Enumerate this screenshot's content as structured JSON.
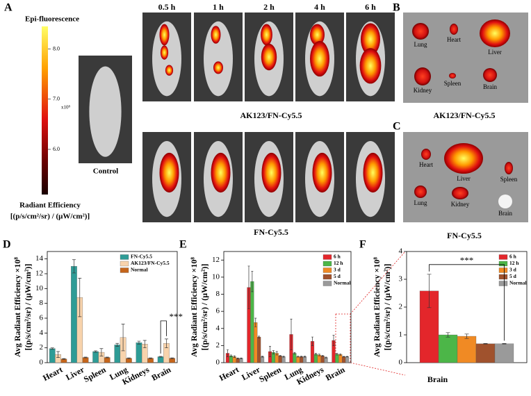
{
  "figure": {
    "panels": [
      "A",
      "B",
      "C",
      "D",
      "E",
      "F"
    ],
    "colorbar": {
      "title": "Epi-fluorescence",
      "lim": [
        5.1,
        8.45
      ],
      "ticks": [
        {
          "value": 8,
          "label": "8.0"
        },
        {
          "value": 7,
          "label": "7.0"
        },
        {
          "value": 6,
          "label": "6.0"
        }
      ],
      "multiplier": "x10⁸",
      "label": [
        "Radiant Efficiency",
        "[(p/s/cm²/sr) / (μW/cm²)]"
      ]
    },
    "time_labels": [
      "0.5 h",
      "1 h",
      "2 h",
      "4 h",
      "6 h"
    ],
    "control_label": "Control",
    "row_label_top": "AK123/FN-Cy5.5",
    "row_label_bottom": "FN-Cy5.5",
    "caption_b": "AK123/FN-Cy5.5",
    "caption_c": "FN-Cy5.5",
    "organs_b": [
      "Lung",
      "Heart",
      "Liver",
      "Kidney",
      "Spleen",
      "Brain"
    ],
    "organs_c": [
      "Heart",
      "Liver",
      "Spleen",
      "Lung",
      "Kidney",
      "Brain"
    ]
  },
  "chart_data": [
    {
      "type": "bar",
      "ylabel": [
        "Avg Radiant Efficiency ×10⁸",
        "[(p/s/cm²/sr) / (μW/cm²)]"
      ],
      "categories": [
        "Heart",
        "Liver",
        "Spleen",
        "Lung",
        "Kidneys",
        "Brain"
      ],
      "series": [
        {
          "name": "FN-Cy5.5",
          "color": "#2e9c96",
          "values": [
            1.9,
            13.0,
            1.5,
            2.4,
            2.7,
            0.8
          ],
          "errors": [
            0.1,
            0.9,
            0.1,
            0.2,
            0.2,
            0.05
          ]
        },
        {
          "name": "AK123/FN-Cy5.5",
          "color": "#f8d3ac",
          "values": [
            1.1,
            8.8,
            1.4,
            3.4,
            2.5,
            2.6
          ],
          "errors": [
            0.4,
            2.6,
            0.5,
            1.8,
            0.5,
            0.6
          ]
        },
        {
          "name": "Normal",
          "color": "#c5651b",
          "values": [
            0.5,
            0.7,
            0.7,
            0.6,
            0.6,
            0.6
          ],
          "errors": [
            0.05,
            0.05,
            0.05,
            0.05,
            0.05,
            0.05
          ]
        }
      ],
      "ylim": [
        0,
        15
      ],
      "yticks": [
        0,
        2,
        4,
        6,
        8,
        10,
        12,
        14
      ],
      "legend": "upper right",
      "annotation": "***"
    },
    {
      "type": "bar",
      "ylabel": [
        "Avg Radiant Efficiency ×10⁸",
        "[(p/s/cm²/sr) / (μW/cm²)]"
      ],
      "categories": [
        "Heart",
        "Liver",
        "Spleen",
        "Lung",
        "Kidneys",
        "Brain"
      ],
      "series": [
        {
          "name": "6 h",
          "color": "#e3262b",
          "values": [
            1.1,
            8.8,
            1.3,
            3.3,
            2.5,
            2.6
          ],
          "errors": [
            0.4,
            2.5,
            0.6,
            1.8,
            0.5,
            0.6
          ]
        },
        {
          "name": "12 h",
          "color": "#4cb648",
          "values": [
            0.8,
            9.5,
            1.2,
            1.1,
            1.0,
            1.0
          ],
          "errors": [
            0.1,
            1.2,
            0.2,
            0.1,
            0.1,
            0.1
          ]
        },
        {
          "name": "3 d",
          "color": "#f08a24",
          "values": [
            0.7,
            4.7,
            1.1,
            0.7,
            0.9,
            0.95
          ],
          "errors": [
            0.1,
            0.5,
            0.2,
            0.05,
            0.1,
            0.08
          ]
        },
        {
          "name": "5 d",
          "color": "#a0522d",
          "values": [
            0.5,
            3.0,
            0.8,
            0.7,
            0.8,
            0.7
          ],
          "errors": [
            0.05,
            0.1,
            0.05,
            0.05,
            0.05,
            0.03
          ]
        },
        {
          "name": "Normal",
          "color": "#9a9a9a",
          "values": [
            0.5,
            0.7,
            0.7,
            0.7,
            0.6,
            0.7
          ],
          "errors": [
            0.05,
            0.05,
            0.05,
            0.05,
            0.05,
            0.03
          ]
        }
      ],
      "ylim": [
        0,
        13
      ],
      "yticks": [
        0,
        2,
        4,
        6,
        8,
        10,
        12
      ],
      "legend": "upper right"
    },
    {
      "type": "bar",
      "ylabel": [
        "Avg Radiant Efficiency ×10⁸",
        "[(p/s/cm²/sr) / (μW/cm²)]"
      ],
      "categories": [
        "Brain"
      ],
      "series": [
        {
          "name": "6 h",
          "color": "#e3262b",
          "values": [
            2.58
          ],
          "errors": [
            0.6
          ]
        },
        {
          "name": "12 h",
          "color": "#4cb648",
          "values": [
            1.0
          ],
          "errors": [
            0.08
          ]
        },
        {
          "name": "3 d",
          "color": "#f08a24",
          "values": [
            0.95
          ],
          "errors": [
            0.08
          ]
        },
        {
          "name": "5 d",
          "color": "#a0522d",
          "values": [
            0.68
          ],
          "errors": [
            0.01
          ]
        },
        {
          "name": "Normal",
          "color": "#9a9a9a",
          "values": [
            0.68
          ],
          "errors": [
            0.01
          ]
        }
      ],
      "ylim": [
        0,
        4
      ],
      "yticks": [
        0,
        1,
        2,
        3,
        4
      ],
      "legend": "upper right",
      "annotation": "***"
    }
  ]
}
